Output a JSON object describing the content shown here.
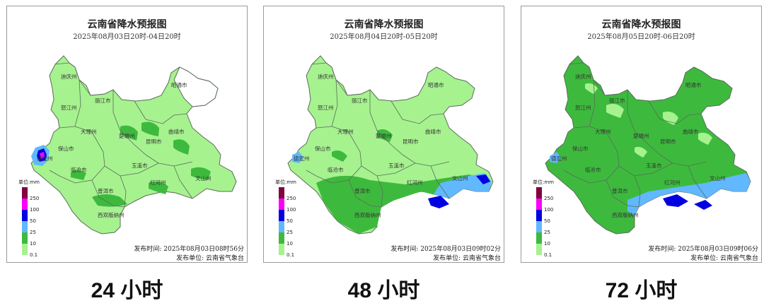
{
  "colors": {
    "c0_1": "#a6f28f",
    "c10": "#3dba3d",
    "c25": "#61b8ff",
    "c50": "#0000e1",
    "c100": "#fa00fa",
    "c250": "#800040",
    "border": "#5a6b5a"
  },
  "legend": {
    "unit": "单位:mm",
    "levels": [
      "250",
      "100",
      "50",
      "25",
      "10",
      "0.1"
    ]
  },
  "cities": [
    "迪庆州",
    "丽江市",
    "怒江州",
    "昭通市",
    "大理州",
    "楚雄州",
    "曲靖市",
    "保山市",
    "昆明市",
    "德宏州",
    "临沧市",
    "玉溪市",
    "红河州",
    "文山州",
    "普洱市",
    "西双版纳州"
  ],
  "panels": [
    {
      "title": "云南省降水预报图",
      "subtitle": "2025年08月03日20时-04日20时",
      "footer_time": "发布时间: 2025年08月03日08时56分",
      "footer_unit": "发布单位: 云南省气象台",
      "caption": "24 小时"
    },
    {
      "title": "云南省降水预报图",
      "subtitle": "2025年08月04日20时-05日20时",
      "footer_time": "发布时间: 2025年08月03日09时02分",
      "footer_unit": "发布单位: 云南省气象台",
      "caption": "48 小时"
    },
    {
      "title": "云南省降水预报图",
      "subtitle": "2025年08月05日20时-06日20时",
      "footer_time": "发布时间: 2025年08月03日09时06分",
      "footer_unit": "发布单位: 云南省气象台",
      "caption": "72 小时"
    }
  ]
}
